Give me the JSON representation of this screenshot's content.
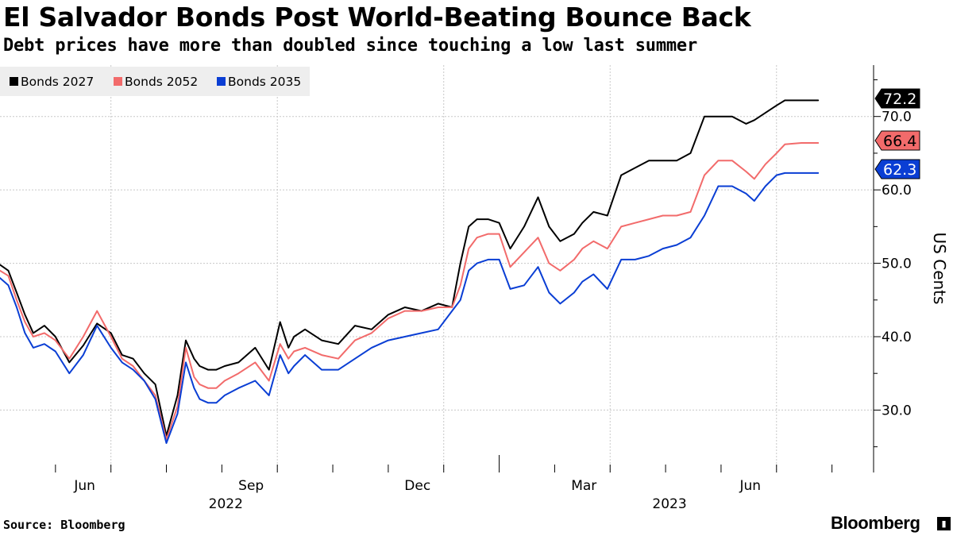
{
  "header": {
    "title": "El Salvador Bonds Post World-Beating Bounce Back",
    "subtitle": "Debt prices have more than doubled since touching a low last summer"
  },
  "footer": {
    "source": "Source: Bloomberg",
    "brand": "Bloomberg",
    "brand_icon": "bar-chart-icon"
  },
  "colors": {
    "bonds_2027": "#000000",
    "bonds_2052": "#f26b6b",
    "bonds_2035": "#0a3ed4",
    "grid": "#c8c8c8",
    "legend_bg": "#eeeeee"
  },
  "chart_data": {
    "type": "line",
    "title": "El Salvador Bonds Post World-Beating Bounce Back",
    "subtitle": "Debt prices have more than doubled since touching a low last summer",
    "xlabel": "",
    "ylabel": "US Cents",
    "x_unit": "months since 2022-04-01",
    "xlim": [
      0,
      15.75
    ],
    "ylim": [
      21.5,
      77
    ],
    "yticks": [
      30,
      40,
      50,
      60,
      70
    ],
    "ytick_labels": [
      "30.0",
      "40.0",
      "50.0",
      "60.0",
      "70.0"
    ],
    "month_ticks": [
      {
        "x": 2,
        "label": "Jun"
      },
      {
        "x": 5,
        "label": "Sep"
      },
      {
        "x": 8,
        "label": "Dec"
      },
      {
        "x": 11,
        "label": "Mar"
      },
      {
        "x": 14,
        "label": "Jun"
      }
    ],
    "year_labels": [
      {
        "x": 4.5,
        "label": "2022"
      },
      {
        "x": 12.5,
        "label": "2023"
      }
    ],
    "year_boundaries": [
      9
    ],
    "grid": true,
    "legend_position": "top-left",
    "last_value_labels": [
      {
        "series": "Bonds 2027",
        "value": "72.2"
      },
      {
        "series": "Bonds 2052",
        "value": "66.4"
      },
      {
        "series": "Bonds 2035",
        "value": "62.3"
      }
    ],
    "series": [
      {
        "name": "Bonds 2027",
        "key": "bonds_2027",
        "x": [
          0,
          0.15,
          0.3,
          0.45,
          0.6,
          0.8,
          1.0,
          1.25,
          1.5,
          1.75,
          2.0,
          2.2,
          2.4,
          2.6,
          2.8,
          3.0,
          3.2,
          3.35,
          3.5,
          3.6,
          3.75,
          3.9,
          4.05,
          4.3,
          4.6,
          4.85,
          5.05,
          5.2,
          5.3,
          5.5,
          5.8,
          6.1,
          6.4,
          6.7,
          7.0,
          7.3,
          7.6,
          7.9,
          8.15,
          8.3,
          8.45,
          8.6,
          8.8,
          9.0,
          9.2,
          9.45,
          9.7,
          9.9,
          10.1,
          10.35,
          10.5,
          10.7,
          10.95,
          11.2,
          11.45,
          11.7,
          11.95,
          12.2,
          12.45,
          12.7,
          12.95,
          13.2,
          13.45,
          13.6,
          13.8,
          14.0,
          14.15,
          14.3,
          14.45,
          14.6,
          14.75
        ],
        "values": [
          49.8,
          49.0,
          46.0,
          43.0,
          40.5,
          41.5,
          40.0,
          36.5,
          38.8,
          41.8,
          40.5,
          37.5,
          37.0,
          35.0,
          33.5,
          26.5,
          32.0,
          39.5,
          37.0,
          36.0,
          35.5,
          35.5,
          36.0,
          36.5,
          38.5,
          35.5,
          42.0,
          38.5,
          40.0,
          41.0,
          39.5,
          39.0,
          41.5,
          41.0,
          43.0,
          44.0,
          43.5,
          44.5,
          44.0,
          50.0,
          55.0,
          56.0,
          56.0,
          55.5,
          52.0,
          55.0,
          59.0,
          55.0,
          53.0,
          54.0,
          55.5,
          57.0,
          56.5,
          62.0,
          63.0,
          64.0,
          64.0,
          64.0,
          65.0,
          70.0,
          70.0,
          70.0,
          69.0,
          69.5,
          70.5,
          71.5,
          72.2,
          72.2,
          72.2,
          72.2,
          72.2
        ]
      },
      {
        "name": "Bonds 2052",
        "key": "bonds_2052",
        "x": [
          0,
          0.15,
          0.3,
          0.45,
          0.6,
          0.8,
          1.0,
          1.25,
          1.5,
          1.75,
          2.0,
          2.2,
          2.4,
          2.6,
          2.8,
          3.0,
          3.2,
          3.35,
          3.5,
          3.6,
          3.75,
          3.9,
          4.05,
          4.3,
          4.6,
          4.85,
          5.05,
          5.2,
          5.3,
          5.5,
          5.8,
          6.1,
          6.4,
          6.7,
          7.0,
          7.3,
          7.6,
          7.9,
          8.15,
          8.3,
          8.45,
          8.6,
          8.8,
          9.0,
          9.2,
          9.45,
          9.7,
          9.9,
          10.1,
          10.35,
          10.5,
          10.7,
          10.95,
          11.2,
          11.45,
          11.7,
          11.95,
          12.2,
          12.45,
          12.7,
          12.95,
          13.2,
          13.45,
          13.6,
          13.8,
          14.0,
          14.15,
          14.3,
          14.45,
          14.6,
          14.75
        ],
        "values": [
          49.0,
          48.3,
          45.0,
          42.0,
          40.0,
          40.5,
          39.5,
          37.0,
          40.0,
          43.5,
          40.0,
          37.0,
          36.0,
          34.0,
          32.0,
          26.0,
          30.5,
          38.5,
          34.5,
          33.5,
          33.0,
          33.0,
          34.0,
          35.0,
          36.5,
          34.0,
          39.0,
          37.0,
          38.0,
          38.5,
          37.5,
          37.0,
          39.5,
          40.5,
          42.5,
          43.5,
          43.5,
          44.0,
          44.0,
          47.0,
          52.0,
          53.5,
          54.0,
          54.0,
          49.5,
          51.5,
          53.5,
          50.0,
          49.0,
          50.5,
          52.0,
          53.0,
          52.0,
          55.0,
          55.5,
          56.0,
          56.5,
          56.5,
          57.0,
          62.0,
          64.0,
          64.0,
          62.5,
          61.5,
          63.5,
          65.0,
          66.2,
          66.3,
          66.4,
          66.4,
          66.4
        ]
      },
      {
        "name": "Bonds 2035",
        "key": "bonds_2035",
        "x": [
          0,
          0.15,
          0.3,
          0.45,
          0.6,
          0.8,
          1.0,
          1.25,
          1.5,
          1.75,
          2.0,
          2.2,
          2.4,
          2.6,
          2.8,
          3.0,
          3.2,
          3.35,
          3.5,
          3.6,
          3.75,
          3.9,
          4.05,
          4.3,
          4.6,
          4.85,
          5.05,
          5.2,
          5.3,
          5.5,
          5.8,
          6.1,
          6.4,
          6.7,
          7.0,
          7.3,
          7.6,
          7.9,
          8.15,
          8.3,
          8.45,
          8.6,
          8.8,
          9.0,
          9.2,
          9.45,
          9.7,
          9.9,
          10.1,
          10.35,
          10.5,
          10.7,
          10.95,
          11.2,
          11.45,
          11.7,
          11.95,
          12.2,
          12.45,
          12.7,
          12.95,
          13.2,
          13.45,
          13.6,
          13.8,
          14.0,
          14.15,
          14.3,
          14.45,
          14.6,
          14.75
        ],
        "values": [
          48.0,
          47.0,
          44.0,
          40.5,
          38.5,
          39.0,
          38.0,
          35.0,
          37.5,
          41.5,
          38.5,
          36.5,
          35.5,
          34.0,
          31.5,
          25.5,
          29.5,
          36.5,
          33.0,
          31.5,
          31.0,
          31.0,
          32.0,
          33.0,
          34.0,
          32.0,
          37.5,
          35.0,
          36.0,
          37.5,
          35.5,
          35.5,
          37.0,
          38.5,
          39.5,
          40.0,
          40.5,
          41.0,
          43.5,
          45.0,
          49.0,
          50.0,
          50.5,
          50.5,
          46.5,
          47.0,
          49.5,
          46.0,
          44.5,
          46.0,
          47.5,
          48.5,
          46.5,
          50.5,
          50.5,
          51.0,
          52.0,
          52.5,
          53.5,
          56.5,
          60.5,
          60.5,
          59.5,
          58.5,
          60.5,
          62.0,
          62.3,
          62.3,
          62.3,
          62.3,
          62.3
        ]
      }
    ]
  }
}
